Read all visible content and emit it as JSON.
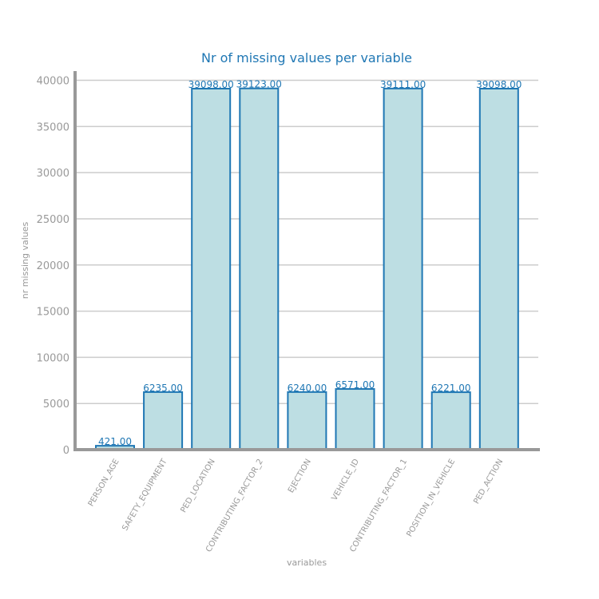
{
  "chart_data": {
    "type": "bar",
    "title": "Nr of missing values per variable",
    "xlabel": "variables",
    "ylabel": "nr missing values",
    "categories": [
      "PERSON_AGE",
      "SAFETY_EQUIPMENT",
      "PED_LOCATION",
      "CONTRIBUTING_FACTOR_2",
      "EJECTION",
      "VEHICLE_ID",
      "CONTRIBUTING_FACTOR_1",
      "POSITION_IN_VEHICLE",
      "PED_ACTION"
    ],
    "values": [
      421,
      6235,
      39098,
      39123,
      6240,
      6571,
      39111,
      6221,
      39098
    ],
    "data_labels": [
      "421.00",
      "6235.00",
      "39098.00",
      "39123.00",
      "6240.00",
      "6571.00",
      "39111.00",
      "6221.00",
      "39098.00"
    ],
    "ylim": [
      0,
      41000
    ],
    "yticks": [
      0,
      5000,
      10000,
      15000,
      20000,
      25000,
      30000,
      35000,
      40000
    ],
    "grid": true,
    "colors": {
      "bar_fill": "#bddee3",
      "bar_edge": "#1f77b4",
      "title": "#1f77b4",
      "data_label": "#1f77b4",
      "axis": "#999999",
      "grid": "#cccccc",
      "tick_text": "#999999"
    }
  }
}
